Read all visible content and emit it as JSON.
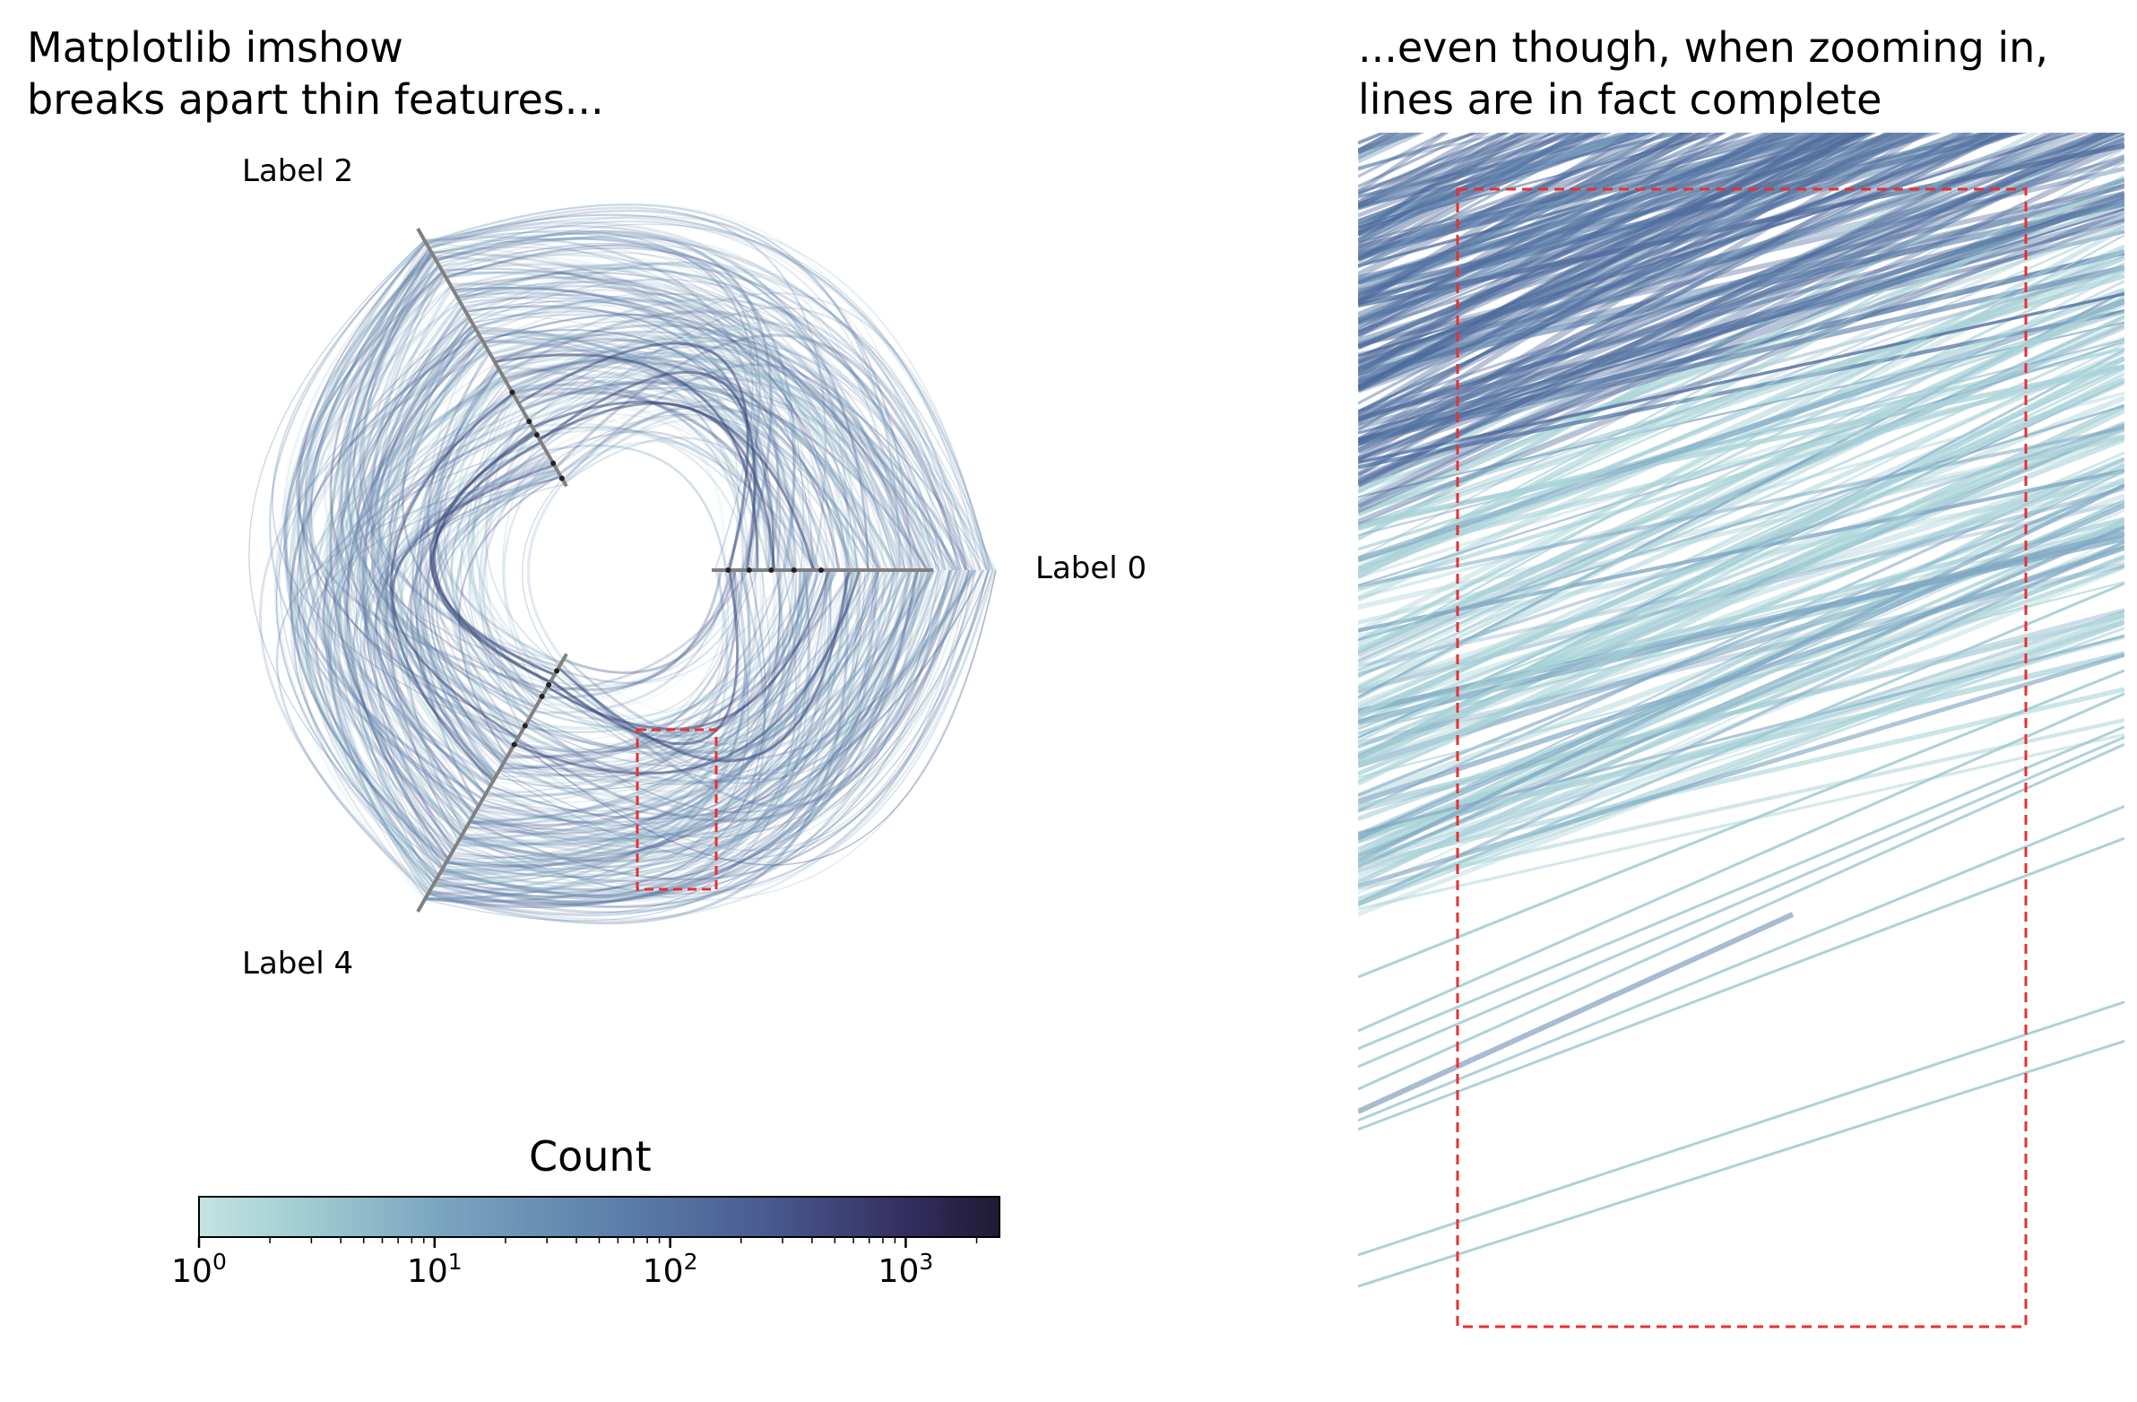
{
  "colors": {
    "cmap_low": "#c5e3e1",
    "cmap_mid": "#5f83ad",
    "cmap_high": "#1e1a33",
    "axis_line": "#808080",
    "zoom_box": "#e8302f",
    "line_color": "#5a7aa6",
    "light_line": "#a9d2d8"
  },
  "left_panel": {
    "title": "Matplotlib imshow\nbreaks apart thin features...",
    "axis_labels": [
      "Label 0",
      "Label 2",
      "Label 4"
    ]
  },
  "right_panel": {
    "title": "...even though, when zooming in,\nlines are in fact complete"
  },
  "colorbar": {
    "title": "Count",
    "scale": "log",
    "range": [
      1,
      2500
    ],
    "ticks": [
      {
        "base": "10",
        "exp": "0"
      },
      {
        "base": "10",
        "exp": "1"
      },
      {
        "base": "10",
        "exp": "2"
      },
      {
        "base": "10",
        "exp": "3"
      }
    ]
  },
  "chart_data": [
    {
      "type": "heatmap",
      "title": "Matplotlib imshow\nbreaks apart thin features...",
      "description_axes": [
        "Label 0",
        "Label 2",
        "Label 4"
      ],
      "colorbar_label": "Count",
      "colorbar_scale": "log",
      "colorbar_range": [
        1,
        2500
      ]
    },
    {
      "type": "heatmap",
      "title": "...even though, when zooming in,\nlines are in fact complete"
    }
  ]
}
